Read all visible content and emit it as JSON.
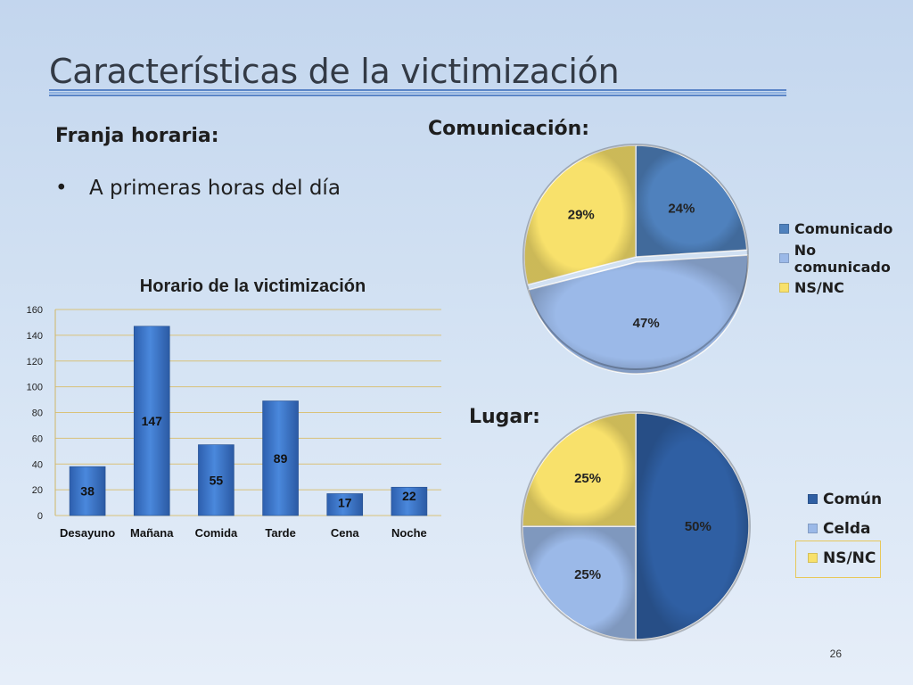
{
  "slide": {
    "title": "Características de la victimización",
    "page_number": "26"
  },
  "franja": {
    "heading": "Franja horaria:",
    "bullet": "A primeras horas del día"
  },
  "comunicacion_heading": "Comunicación:",
  "lugar_heading": "Lugar:",
  "chart_data": [
    {
      "type": "bar",
      "title": "Horario de la victimización",
      "categories": [
        "Desayuno",
        "Mañana",
        "Comida",
        "Tarde",
        "Cena",
        "Noche"
      ],
      "values": [
        38,
        147,
        55,
        89,
        17,
        22
      ],
      "data_labels": [
        "38",
        "147",
        "55",
        "89",
        "17",
        "22"
      ],
      "ylim": [
        0,
        160
      ],
      "yticks": [
        "0",
        "20",
        "40",
        "60",
        "80",
        "100",
        "120",
        "140",
        "160"
      ],
      "grid": true,
      "bar_color": "#3f7ad0"
    },
    {
      "type": "pie",
      "categories": [
        "Comunicado",
        "No comunicado",
        "NS/NC"
      ],
      "values": [
        24,
        47,
        29
      ],
      "data_labels": [
        "24%",
        "47%",
        "29%"
      ],
      "colors": [
        "#4f81bd",
        "#9bb9e8",
        "#f8e16b"
      ],
      "legend": "right"
    },
    {
      "type": "pie",
      "categories": [
        "Común",
        "Celda",
        "NS/NC"
      ],
      "values": [
        50,
        25,
        25
      ],
      "data_labels": [
        "50%",
        "25%",
        "25%"
      ],
      "colors": [
        "#2f5fa3",
        "#9bb9e8",
        "#f8e16b"
      ],
      "legend": "right"
    }
  ]
}
